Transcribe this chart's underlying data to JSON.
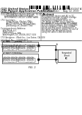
{
  "bg_color": "#ffffff",
  "bar_color": "#000000",
  "text_dark": "#111111",
  "text_mid": "#333333",
  "text_light": "#555555",
  "line_color": "#222222",
  "header_line1": "(12) United States",
  "header_line2": "(19) Patent Application Publication",
  "header_line3": "Huang et al.",
  "pub_no": "(10) Pub. No.: US 2010/0202167 A1",
  "pub_date": "(43) Pub. Date:     Aug. 12, 2010",
  "title1": "(54) INTEGRATED DEVICE WITH AC TO DC",
  "title2": "      CONVERSION FUNCTION AND",
  "title3": "      INTEGRATED CIRCUIT USING SAME",
  "inventors": "(75) Inventors:",
  "inv1": "Yung-Lin Lin, Zhubei (TW);",
  "inv2": "Jia-Min Shieh, Zhubei (TW);",
  "inv3": "Ming-Chih Chen, Zhubei (TW);",
  "inv4": "Jian-Liang Lin, Zhubei (TW)",
  "corr": "Correspondence Address:",
  "corr1": "SINORICA, LLC",
  "corr2": "Suite 2200",
  "corr3": "1700 K Street, NW",
  "corr4": "Washington, DC 20006-3817 (US)",
  "assignee": "(73) Assignee:  iWatt Inc., Los Gatos, CA (US)",
  "appl_no": "(21) Appl. No.:  12/690,807",
  "filed": "(22) Filed:       January 21, 2010",
  "foreign": "(30) Foreign Application Priority Data",
  "foreign2": "Jan. 21, 2009   (TW) ............ 098101948",
  "abstract_label": "Abstract",
  "abstract_text": "An integrated device with AC to DC conversion function includes a bridge rectifier circuit and a power conversion integrated circuit (IC). The bridge rectifier circuit converts AC voltage to a DC voltage. The power conversion IC converts the DC voltage to a DC output voltage. The integrated device integrates the bridge rectifier circuit and the power conversion IC in the same package to reduce the size of the device. An integrated circuit using the same is also disclosed.",
  "fig_label": "FIG. 1",
  "ac_top": "AC INPUT (110V/60Hz)",
  "ac_bot": "AC INPUT (220V/50Hz)",
  "ic_label1": "Integrated",
  "ic_label2": "Circuit",
  "ic_label3": "IC"
}
